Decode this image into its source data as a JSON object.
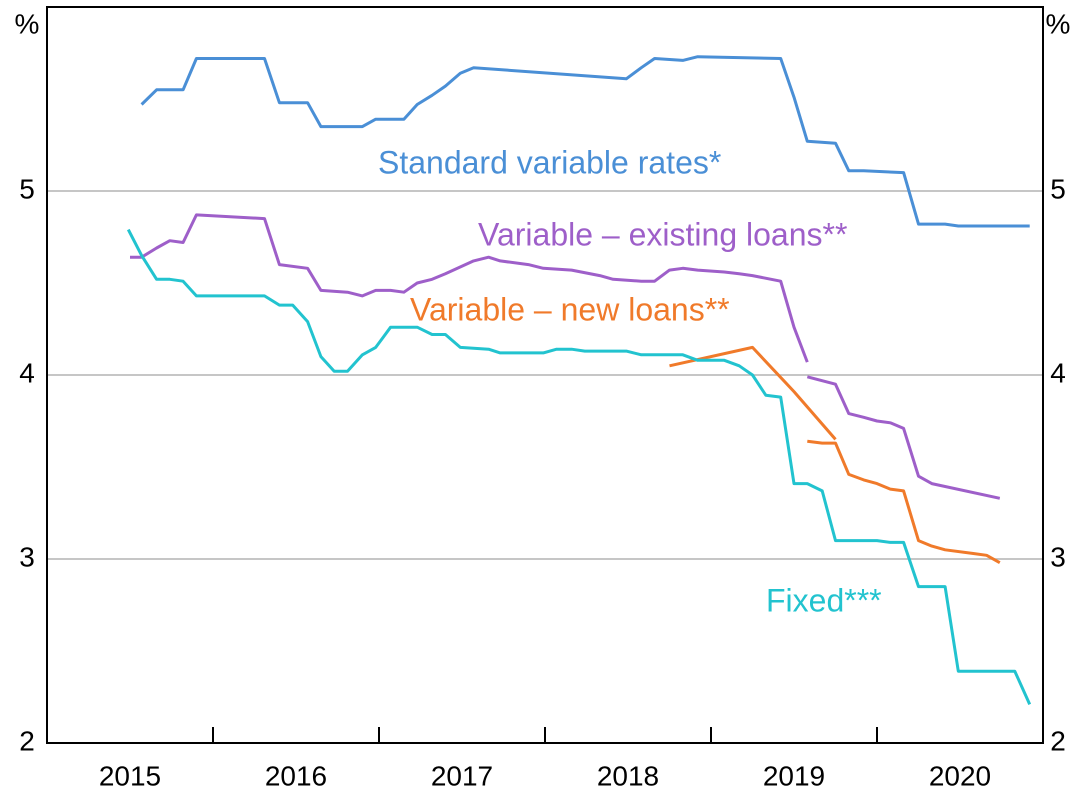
{
  "chart_data": {
    "type": "line",
    "y_label": "%",
    "xlim": [
      2015,
      2021
    ],
    "xticks": [
      2016,
      2017,
      2018,
      2019,
      2020
    ],
    "year_labels": [
      "2015",
      "2016",
      "2017",
      "2018",
      "2019",
      "2020"
    ],
    "ylim": [
      2,
      6
    ],
    "yticks": [
      2,
      3,
      4,
      5
    ],
    "grid": true,
    "series": [
      {
        "label": "Standard variable rates*",
        "color": "#4a8fd6",
        "x": [
          2015.57,
          2015.66,
          2015.82,
          2015.9,
          2016.31,
          2016.4,
          2016.57,
          2016.65,
          2016.9,
          2016.98,
          2017.15,
          2017.23,
          2017.32,
          2017.4,
          2017.49,
          2017.57,
          2018.49,
          2018.58,
          2018.66,
          2018.83,
          2018.92,
          2019.42,
          2019.5,
          2019.58,
          2019.75,
          2019.83,
          2019.92,
          2020.16,
          2020.25,
          2020.41,
          2020.49,
          2020.92
        ],
        "values": [
          5.47,
          5.55,
          5.55,
          5.72,
          5.72,
          5.48,
          5.48,
          5.35,
          5.35,
          5.39,
          5.39,
          5.47,
          5.52,
          5.57,
          5.64,
          5.67,
          5.61,
          5.67,
          5.72,
          5.71,
          5.73,
          5.72,
          5.51,
          5.27,
          5.26,
          5.11,
          5.11,
          5.1,
          4.82,
          4.82,
          4.81,
          4.81
        ]
      },
      {
        "label": "Variable – existing loans**",
        "color": "#9e5fc9",
        "x": [
          2015.5,
          2015.57,
          2015.66,
          2015.74,
          2015.82,
          2015.9,
          2016.31,
          2016.4,
          2016.57,
          2016.65,
          2016.81,
          2016.9,
          2016.98,
          2017.07,
          2017.15,
          2017.23,
          2017.32,
          2017.4,
          2017.57,
          2017.66,
          2017.73,
          2017.9,
          2017.99,
          2018.16,
          2018.33,
          2018.41,
          2018.58,
          2018.66,
          2018.75,
          2018.83,
          2018.92,
          2019.08,
          2019.17,
          2019.25,
          2019.42,
          2019.5,
          2019.58,
          2019.58,
          2019.58,
          2019.75,
          2019.83,
          2019.92,
          2020.0,
          2020.08,
          2020.16,
          2020.25,
          2020.33,
          2020.74
        ],
        "values": [
          4.64,
          4.64,
          4.69,
          4.73,
          4.72,
          4.87,
          4.85,
          4.6,
          4.58,
          4.46,
          4.45,
          4.43,
          4.46,
          4.46,
          4.45,
          4.5,
          4.52,
          4.55,
          4.62,
          4.64,
          4.62,
          4.6,
          4.58,
          4.57,
          4.54,
          4.52,
          4.51,
          4.51,
          4.57,
          4.58,
          4.57,
          4.56,
          4.55,
          4.54,
          4.51,
          4.26,
          4.07,
          null,
          3.99,
          3.95,
          3.79,
          3.77,
          3.75,
          3.74,
          3.71,
          3.45,
          3.41,
          3.33
        ]
      },
      {
        "label": "Variable – new loans**",
        "color": "#f07a2a",
        "x": [
          2018.75,
          2019.25,
          2019.5,
          2019.75,
          2019.75,
          2019.58,
          2019.67,
          2019.75,
          2019.83,
          2019.92,
          2020.0,
          2020.08,
          2020.16,
          2020.25,
          2020.33,
          2020.41,
          2020.58,
          2020.66,
          2020.74
        ],
        "values": [
          4.05,
          4.15,
          3.91,
          3.65,
          null,
          3.64,
          3.63,
          3.63,
          3.46,
          3.43,
          3.41,
          3.38,
          3.37,
          3.1,
          3.07,
          3.05,
          3.03,
          3.02,
          2.98
        ]
      },
      {
        "label": "Fixed***",
        "color": "#22c3cf",
        "x": [
          2015.49,
          2015.57,
          2015.66,
          2015.74,
          2015.82,
          2015.9,
          2016.31,
          2016.4,
          2016.48,
          2016.57,
          2016.65,
          2016.73,
          2016.81,
          2016.9,
          2016.98,
          2017.07,
          2017.23,
          2017.32,
          2017.4,
          2017.49,
          2017.66,
          2017.73,
          2017.99,
          2018.07,
          2018.16,
          2018.24,
          2018.49,
          2018.58,
          2018.83,
          2018.92,
          2019.08,
          2019.17,
          2019.25,
          2019.33,
          2019.42,
          2019.5,
          2019.58,
          2019.67,
          2019.75,
          2020.0,
          2020.08,
          2020.16,
          2020.25,
          2020.41,
          2020.49,
          2020.83,
          2020.92
        ],
        "values": [
          4.79,
          4.65,
          4.52,
          4.52,
          4.51,
          4.43,
          4.43,
          4.38,
          4.38,
          4.29,
          4.1,
          4.02,
          4.02,
          4.11,
          4.15,
          4.26,
          4.26,
          4.22,
          4.22,
          4.15,
          4.14,
          4.12,
          4.12,
          4.14,
          4.14,
          4.13,
          4.13,
          4.11,
          4.11,
          4.08,
          4.08,
          4.05,
          4.0,
          3.89,
          3.88,
          3.41,
          3.41,
          3.37,
          3.1,
          3.1,
          3.09,
          3.09,
          2.85,
          2.85,
          2.39,
          2.39,
          2.21
        ]
      }
    ]
  }
}
